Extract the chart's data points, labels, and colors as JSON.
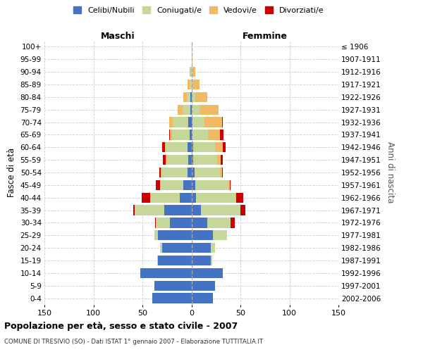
{
  "age_groups": [
    "0-4",
    "5-9",
    "10-14",
    "15-19",
    "20-24",
    "25-29",
    "30-34",
    "35-39",
    "40-44",
    "45-49",
    "50-54",
    "55-59",
    "60-64",
    "65-69",
    "70-74",
    "75-79",
    "80-84",
    "85-89",
    "90-94",
    "95-99",
    "100+"
  ],
  "birth_years": [
    "2002-2006",
    "1997-2001",
    "1992-1996",
    "1987-1991",
    "1982-1986",
    "1977-1981",
    "1972-1976",
    "1967-1971",
    "1962-1966",
    "1957-1961",
    "1952-1956",
    "1947-1951",
    "1942-1946",
    "1937-1941",
    "1932-1936",
    "1927-1931",
    "1922-1926",
    "1917-1921",
    "1912-1916",
    "1907-1911",
    "≤ 1906"
  ],
  "male_celibi": [
    40,
    38,
    52,
    34,
    30,
    34,
    22,
    28,
    12,
    8,
    4,
    3,
    4,
    2,
    3,
    1,
    1,
    0,
    0,
    0,
    0
  ],
  "male_coniugati": [
    0,
    0,
    0,
    1,
    2,
    4,
    14,
    30,
    30,
    24,
    26,
    22,
    22,
    18,
    16,
    8,
    4,
    2,
    1,
    0,
    0
  ],
  "male_vedovi": [
    0,
    0,
    0,
    0,
    0,
    0,
    0,
    0,
    0,
    0,
    1,
    1,
    1,
    2,
    4,
    5,
    3,
    2,
    1,
    0,
    0
  ],
  "male_divorziati": [
    0,
    0,
    0,
    0,
    0,
    0,
    1,
    1,
    9,
    4,
    2,
    3,
    3,
    1,
    0,
    0,
    0,
    0,
    0,
    0,
    0
  ],
  "female_celibi": [
    22,
    24,
    32,
    20,
    20,
    22,
    16,
    10,
    5,
    4,
    3,
    2,
    2,
    1,
    1,
    0,
    0,
    0,
    0,
    0,
    0
  ],
  "female_coniugati": [
    0,
    0,
    0,
    1,
    4,
    14,
    24,
    40,
    40,
    34,
    26,
    24,
    22,
    16,
    12,
    8,
    4,
    1,
    1,
    0,
    0
  ],
  "female_vedovi": [
    0,
    0,
    0,
    0,
    0,
    0,
    0,
    0,
    1,
    1,
    2,
    4,
    8,
    12,
    18,
    20,
    12,
    7,
    3,
    1,
    0
  ],
  "female_divorziati": [
    0,
    0,
    0,
    0,
    0,
    0,
    4,
    5,
    7,
    1,
    1,
    2,
    3,
    4,
    1,
    0,
    0,
    0,
    0,
    0,
    0
  ],
  "colors": {
    "celibi": "#4472C4",
    "coniugati": "#C5D89A",
    "vedovi": "#F0B963",
    "divorziati": "#CC0000"
  },
  "xlim": 150,
  "maschi_label": "Maschi",
  "femmine_label": "Femmine",
  "title": "Popolazione per età, sesso e stato civile - 2007",
  "subtitle": "COMUNE DI TRESIVIO (SO) - Dati ISTAT 1° gennaio 2007 - Elaborazione TUTTITALIA.IT",
  "ylabel_left": "Fasce di età",
  "ylabel_right": "Anni di nascita",
  "legend_labels": [
    "Celibi/Nubili",
    "Coniugati/e",
    "Vedovi/e",
    "Divorziati/e"
  ],
  "background_color": "#ffffff",
  "grid_color": "#cccccc"
}
